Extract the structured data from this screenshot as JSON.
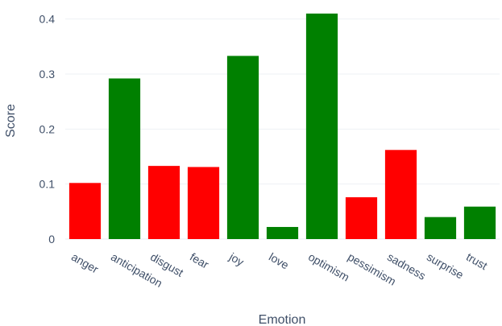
{
  "chart_data": {
    "type": "bar",
    "xlabel": "Emotion",
    "ylabel": "Score",
    "categories": [
      "anger",
      "anticipation",
      "disgust",
      "fear",
      "joy",
      "love",
      "optimism",
      "pessimism",
      "sadness",
      "surprise",
      "trust"
    ],
    "values": [
      0.102,
      0.292,
      0.133,
      0.131,
      0.333,
      0.022,
      0.41,
      0.076,
      0.162,
      0.04,
      0.059
    ],
    "colors": [
      "#ff0000",
      "#008000",
      "#ff0000",
      "#ff0000",
      "#008000",
      "#008000",
      "#008000",
      "#ff0000",
      "#ff0000",
      "#008000",
      "#008000"
    ],
    "ylim": [
      0,
      0.42
    ],
    "yticks": [
      0,
      0.1,
      0.2,
      0.3,
      0.4
    ],
    "ytick_labels": [
      "0",
      "0.1",
      "0.2",
      "0.3",
      "0.4"
    ],
    "grid": true,
    "legend": "none"
  }
}
